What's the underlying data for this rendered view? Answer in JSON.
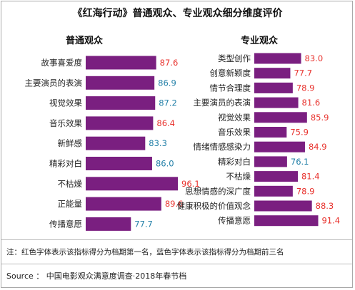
{
  "title": "《红海行动》普通观众、专业观众细分维度评价",
  "colors": {
    "bar": "#7a1f80",
    "red": "#e8322d",
    "blue": "#2380a8",
    "dark": "#222222"
  },
  "chart_data": [
    {
      "type": "bar",
      "orientation": "horizontal",
      "title": "普通观众",
      "categories": [
        "故事喜爱度",
        "主要演员的表演",
        "视觉效果",
        "音乐效果",
        "新鲜感",
        "精彩对白",
        "不枯燥",
        "正能量",
        "传播意愿"
      ],
      "values": [
        87.6,
        86.9,
        87.2,
        86.4,
        83.3,
        86.0,
        96.1,
        89.6,
        77.7
      ],
      "value_labels": [
        "87.6",
        "86.9",
        "87.2",
        "86.4",
        "83.3",
        "86.0",
        "96.1",
        "89.6",
        "77.7"
      ],
      "label_colors": [
        "red",
        "blue",
        "blue",
        "red",
        "blue",
        "blue",
        "red",
        "red",
        "blue"
      ],
      "xlim": [
        60,
        100
      ],
      "grid": false,
      "legend": "none"
    },
    {
      "type": "bar",
      "orientation": "horizontal",
      "title": "专业观众",
      "categories": [
        "类型创作",
        "创意新颖度",
        "情节合理度",
        "主要演员的表演",
        "视觉效果",
        "音乐效果",
        "情绪情感感染力",
        "精彩对白",
        "不枯燥",
        "思想情感的深广度",
        "健康积极的价值观念",
        "传播意愿"
      ],
      "values": [
        83.0,
        77.7,
        78.9,
        81.6,
        85.9,
        75.9,
        84.9,
        76.1,
        81.4,
        78.9,
        88.3,
        91.4
      ],
      "value_labels": [
        "83.0",
        "77.7",
        "78.9",
        "81.6",
        "85.9",
        "75.9",
        "84.9",
        "76.1",
        "81.4",
        "78.9",
        "88.3",
        "91.4"
      ],
      "label_colors": [
        "red",
        "red",
        "red",
        "red",
        "red",
        "red",
        "red",
        "blue",
        "red",
        "red",
        "red",
        "red"
      ],
      "xlim": [
        60,
        100
      ],
      "grid": false,
      "legend": "none"
    }
  ],
  "note": "注：红色字体表示该指标得分为档期第一名，蓝色字体表示该指标得分为档期前三名",
  "source": "Source ： 中国电影观众满意度调查·2018年春节档"
}
